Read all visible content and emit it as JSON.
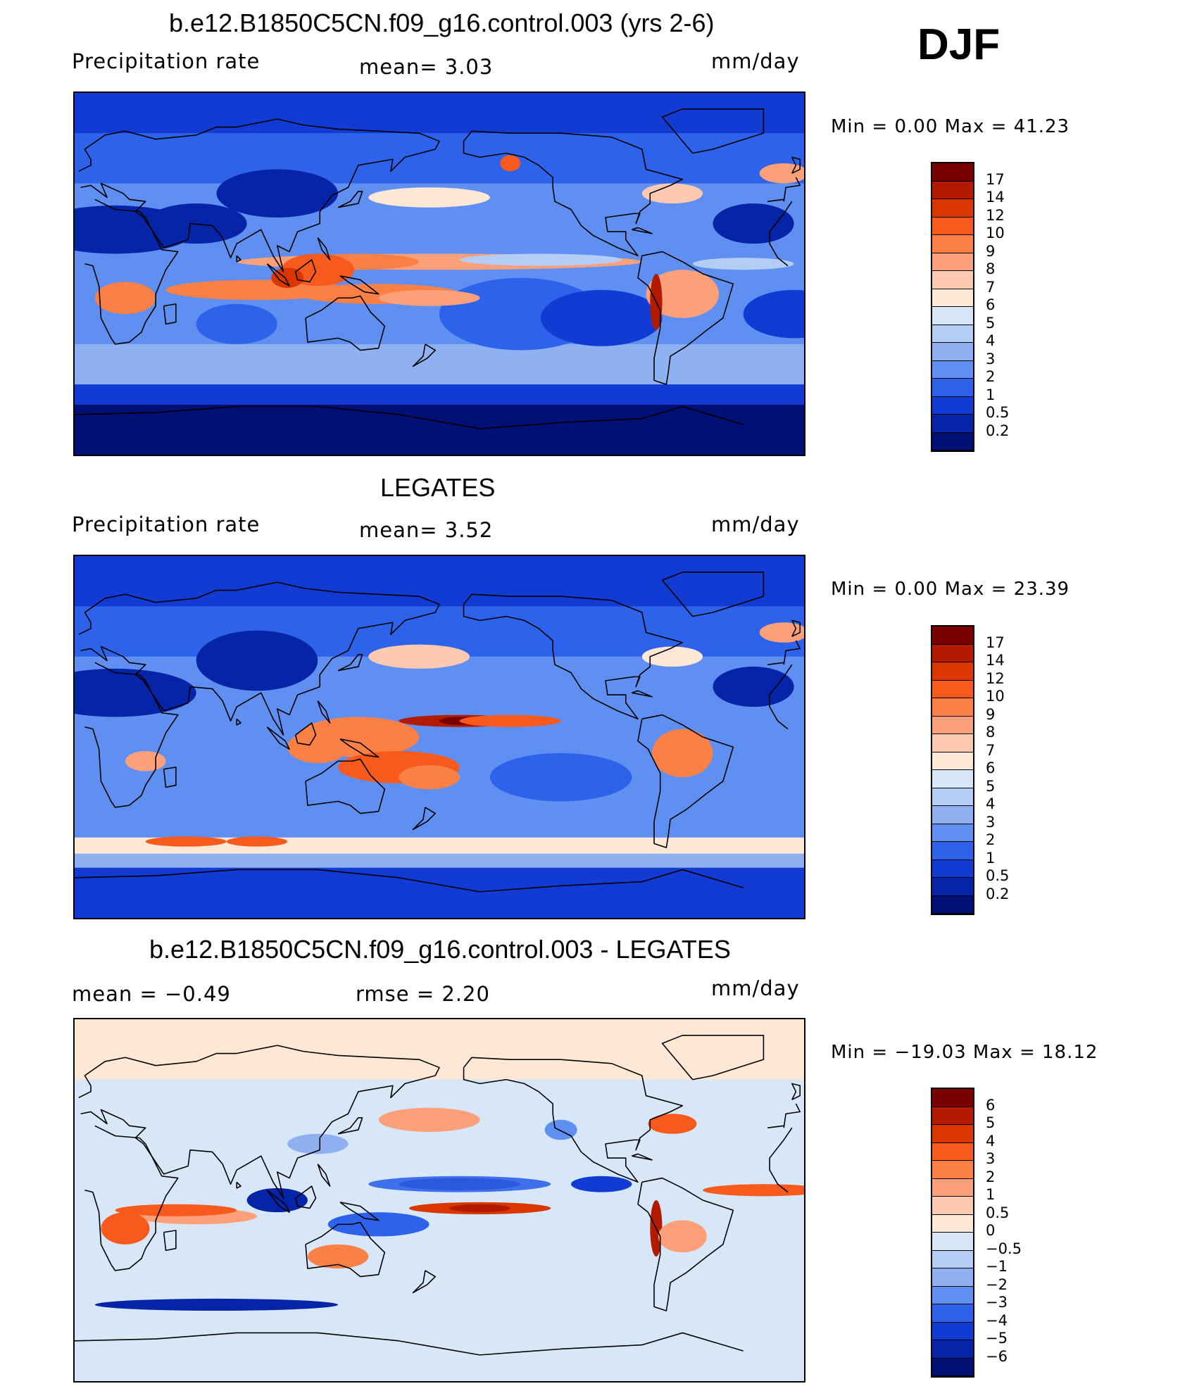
{
  "season": "DJF",
  "panels": [
    {
      "id": "model",
      "title": "b.e12.B1850C5CN.f09_g16.control.003 (yrs 2-6)",
      "left_label": "Precipitation  rate",
      "center_label": "mean=     3.03",
      "units": "mm/day",
      "minmax": "Min  =      0.00  Max  =     41.23",
      "colorbar": {
        "labels": [
          "17",
          "14",
          "12",
          "10",
          "9",
          "8",
          "7",
          "6",
          "5",
          "4",
          "3",
          "2",
          "1",
          "0.5",
          "0.2"
        ],
        "colors": [
          "#7a0000",
          "#b31b00",
          "#d93600",
          "#f75a1c",
          "#fb8046",
          "#fca07a",
          "#fdc9b0",
          "#fde8d6",
          "#d8e7f8",
          "#b4cdf5",
          "#8fb1f2",
          "#5f8ff0",
          "#2d63ea",
          "#113bd3",
          "#0524a8",
          "#001075"
        ]
      },
      "field": "model"
    },
    {
      "id": "obs",
      "title": "LEGATES",
      "left_label": "Precipitation  rate",
      "center_label": "mean=     3.52",
      "units": "mm/day",
      "minmax": "Min  =      0.00  Max  =     23.39",
      "colorbar": {
        "labels": [
          "17",
          "14",
          "12",
          "10",
          "9",
          "8",
          "7",
          "6",
          "5",
          "4",
          "3",
          "2",
          "1",
          "0.5",
          "0.2"
        ],
        "colors": [
          "#7a0000",
          "#b31b00",
          "#d93600",
          "#f75a1c",
          "#fb8046",
          "#fca07a",
          "#fdc9b0",
          "#fde8d6",
          "#d8e7f8",
          "#b4cdf5",
          "#8fb1f2",
          "#5f8ff0",
          "#2d63ea",
          "#113bd3",
          "#0524a8",
          "#001075"
        ]
      },
      "field": "obs"
    },
    {
      "id": "diff",
      "title": "b.e12.B1850C5CN.f09_g16.control.003 - LEGATES",
      "left_label": "mean  =    −0.49",
      "center_label": "rmse  =      2.20",
      "units": "mm/day",
      "minmax": "Min  = −19.03  Max  =     18.12",
      "colorbar": {
        "labels": [
          "6",
          "5",
          "4",
          "3",
          "2",
          "1",
          "0.5",
          "0",
          "−0.5",
          "−1",
          "−2",
          "−3",
          "−4",
          "−5",
          "−6"
        ],
        "colors": [
          "#7a0000",
          "#b31b00",
          "#d93600",
          "#f75a1c",
          "#fb8046",
          "#fca07a",
          "#fdc9b0",
          "#fde8d6",
          "#d8e7f8",
          "#b4cdf5",
          "#8fb1f2",
          "#5f8ff0",
          "#2d63ea",
          "#113bd3",
          "#0524a8",
          "#001075"
        ]
      },
      "field": "diff"
    }
  ]
}
